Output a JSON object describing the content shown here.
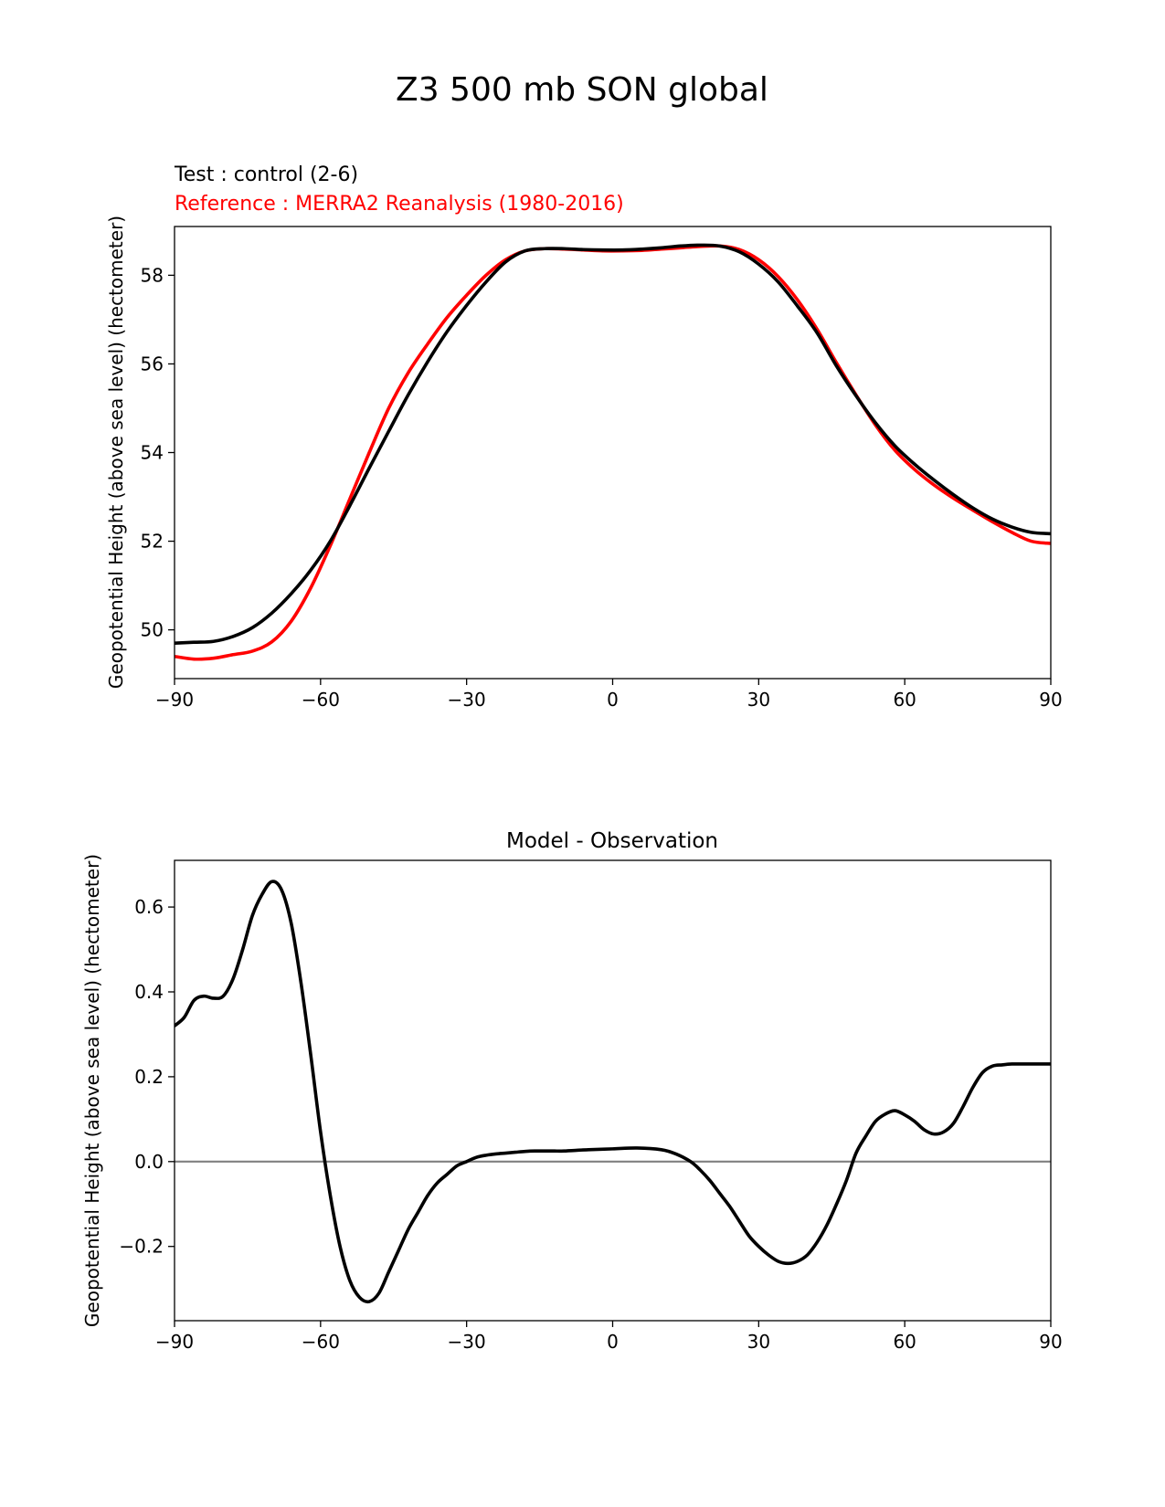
{
  "figure": {
    "suptitle": "Z3 500 mb SON global"
  },
  "colors": {
    "test": "#000000",
    "reference": "#ff0000",
    "diff": "#000000",
    "zero_line": "#808080"
  },
  "chart_data": [
    {
      "type": "line",
      "title": "",
      "title_left_lines": [
        "Test : control (2-6)",
        "Reference : MERRA2 Reanalysis (1980-2016)"
      ],
      "xlabel": "",
      "ylabel": "Geopotential Height (above sea level) (hectometer)",
      "xlim": [
        -90,
        90
      ],
      "ylim": [
        48.9,
        59.1
      ],
      "xticks": [
        -90,
        -60,
        -30,
        0,
        30,
        60,
        90
      ],
      "xtick_labels": [
        "−90",
        "−60",
        "−30",
        "0",
        "30",
        "60",
        "90"
      ],
      "yticks": [
        50,
        52,
        54,
        56,
        58
      ],
      "ytick_labels": [
        "50",
        "52",
        "54",
        "56",
        "58"
      ],
      "grid": false,
      "series": [
        {
          "name": "Test : control (2-6)",
          "color": "#000000",
          "x": [
            -90,
            -86,
            -82,
            -78,
            -74,
            -70,
            -66,
            -62,
            -58,
            -54,
            -50,
            -46,
            -42,
            -38,
            -34,
            -30,
            -26,
            -22,
            -18,
            -14,
            -10,
            -6,
            -2,
            2,
            6,
            10,
            14,
            18,
            22,
            26,
            30,
            34,
            38,
            42,
            46,
            50,
            54,
            58,
            62,
            66,
            70,
            74,
            78,
            82,
            86,
            90
          ],
          "y": [
            49.7,
            49.72,
            49.74,
            49.85,
            50.05,
            50.38,
            50.82,
            51.35,
            52.0,
            52.8,
            53.65,
            54.48,
            55.3,
            56.05,
            56.73,
            57.32,
            57.85,
            58.3,
            58.55,
            58.6,
            58.6,
            58.58,
            58.57,
            58.57,
            58.59,
            58.62,
            58.66,
            58.68,
            58.66,
            58.53,
            58.25,
            57.85,
            57.3,
            56.7,
            55.95,
            55.28,
            54.67,
            54.15,
            53.74,
            53.38,
            53.05,
            52.75,
            52.5,
            52.32,
            52.2,
            52.17
          ]
        },
        {
          "name": "Reference : MERRA2 Reanalysis (1980-2016)",
          "color": "#ff0000",
          "x": [
            -90,
            -86,
            -82,
            -78,
            -74,
            -70,
            -66,
            -62,
            -58,
            -54,
            -50,
            -46,
            -42,
            -38,
            -34,
            -30,
            -26,
            -22,
            -18,
            -14,
            -10,
            -6,
            -2,
            2,
            6,
            10,
            14,
            18,
            22,
            26,
            30,
            34,
            38,
            42,
            46,
            50,
            54,
            58,
            62,
            66,
            70,
            74,
            78,
            82,
            86,
            90
          ],
          "y": [
            49.4,
            49.34,
            49.36,
            49.44,
            49.52,
            49.73,
            50.2,
            50.95,
            51.9,
            52.95,
            54.0,
            55.0,
            55.8,
            56.45,
            57.05,
            57.55,
            58.0,
            58.35,
            58.55,
            58.6,
            58.59,
            58.57,
            58.55,
            58.55,
            58.56,
            58.59,
            58.62,
            58.65,
            58.66,
            58.58,
            58.35,
            57.97,
            57.44,
            56.78,
            56.02,
            55.3,
            54.62,
            54.05,
            53.62,
            53.27,
            52.97,
            52.7,
            52.44,
            52.2,
            52.0,
            51.95
          ]
        }
      ]
    },
    {
      "type": "line",
      "title": "Model - Observation",
      "xlabel": "",
      "ylabel": "Geopotential Height (above sea level) (hectometer)",
      "xlim": [
        -90,
        90
      ],
      "ylim": [
        -0.375,
        0.71
      ],
      "xticks": [
        -90,
        -60,
        -30,
        0,
        30,
        60,
        90
      ],
      "xtick_labels": [
        "−90",
        "−60",
        "−30",
        "0",
        "30",
        "60",
        "90"
      ],
      "yticks": [
        -0.2,
        0.0,
        0.2,
        0.4,
        0.6
      ],
      "ytick_labels": [
        "−0.2",
        "0.0",
        "0.2",
        "0.4",
        "0.6"
      ],
      "grid": false,
      "zero_line": 0.0,
      "series": [
        {
          "name": "",
          "color": "#000000",
          "x": [
            -90,
            -88,
            -86,
            -84,
            -82,
            -80,
            -78,
            -76,
            -74,
            -72,
            -70,
            -68,
            -66,
            -64,
            -62,
            -60,
            -58,
            -56,
            -54,
            -52,
            -50,
            -48,
            -46,
            -44,
            -42,
            -40,
            -38,
            -36,
            -34,
            -32,
            -30,
            -28,
            -26,
            -24,
            -22,
            -20,
            -18,
            -16,
            -14,
            -12,
            -10,
            -5,
            0,
            5,
            10,
            13,
            16,
            18,
            20,
            22,
            24,
            26,
            28,
            30,
            32,
            34,
            36,
            38,
            40,
            42,
            44,
            46,
            48,
            50,
            52,
            54,
            56,
            58,
            60,
            62,
            64,
            66,
            68,
            70,
            72,
            74,
            76,
            78,
            80,
            82,
            84,
            86,
            88,
            90
          ],
          "y": [
            0.32,
            0.34,
            0.38,
            0.39,
            0.385,
            0.39,
            0.43,
            0.5,
            0.58,
            0.63,
            0.66,
            0.64,
            0.56,
            0.42,
            0.25,
            0.07,
            -0.08,
            -0.2,
            -0.28,
            -0.32,
            -0.33,
            -0.31,
            -0.26,
            -0.21,
            -0.16,
            -0.12,
            -0.08,
            -0.05,
            -0.03,
            -0.01,
            0.0,
            0.01,
            0.015,
            0.018,
            0.02,
            0.022,
            0.024,
            0.025,
            0.025,
            0.025,
            0.025,
            0.028,
            0.03,
            0.032,
            0.028,
            0.018,
            0.0,
            -0.02,
            -0.045,
            -0.075,
            -0.105,
            -0.14,
            -0.175,
            -0.2,
            -0.22,
            -0.235,
            -0.24,
            -0.235,
            -0.22,
            -0.19,
            -0.15,
            -0.1,
            -0.045,
            0.02,
            0.06,
            0.095,
            0.112,
            0.12,
            0.11,
            0.095,
            0.075,
            0.065,
            0.07,
            0.09,
            0.13,
            0.175,
            0.21,
            0.225,
            0.228,
            0.23,
            0.23,
            0.23,
            0.23,
            0.23
          ]
        }
      ]
    }
  ]
}
